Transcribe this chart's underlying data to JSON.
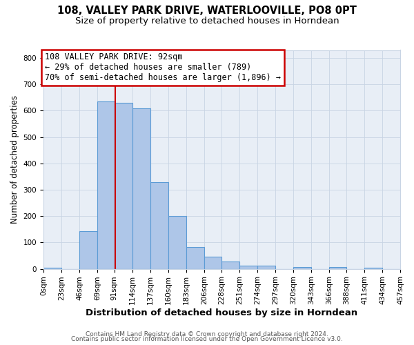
{
  "title": "108, VALLEY PARK DRIVE, WATERLOOVILLE, PO8 0PT",
  "subtitle": "Size of property relative to detached houses in Horndean",
  "xlabel": "Distribution of detached houses by size in Horndean",
  "ylabel": "Number of detached properties",
  "bin_edges": [
    0,
    23,
    46,
    69,
    91,
    114,
    137,
    160,
    183,
    206,
    228,
    251,
    274,
    297,
    320,
    343,
    366,
    388,
    411,
    434,
    457
  ],
  "bar_heights": [
    5,
    0,
    143,
    635,
    630,
    608,
    330,
    200,
    83,
    46,
    27,
    11,
    11,
    0,
    7,
    0,
    7,
    0,
    5,
    0
  ],
  "bar_color": "#aec6e8",
  "bar_edgecolor": "#5b9bd5",
  "property_size": 92,
  "vline_color": "#cc0000",
  "annotation_line1": "108 VALLEY PARK DRIVE: 92sqm",
  "annotation_line2": "← 29% of detached houses are smaller (789)",
  "annotation_line3": "70% of semi-detached houses are larger (1,896) →",
  "annotation_box_edgecolor": "#cc0000",
  "annotation_box_facecolor": "#ffffff",
  "ylim": [
    0,
    830
  ],
  "yticks": [
    0,
    100,
    200,
    300,
    400,
    500,
    600,
    700,
    800
  ],
  "tick_labels": [
    "0sqm",
    "23sqm",
    "46sqm",
    "69sqm",
    "91sqm",
    "114sqm",
    "137sqm",
    "160sqm",
    "183sqm",
    "206sqm",
    "228sqm",
    "251sqm",
    "274sqm",
    "297sqm",
    "320sqm",
    "343sqm",
    "366sqm",
    "388sqm",
    "411sqm",
    "434sqm",
    "457sqm"
  ],
  "footer_line1": "Contains HM Land Registry data © Crown copyright and database right 2024.",
  "footer_line2": "Contains public sector information licensed under the Open Government Licence v3.0.",
  "bg_color": "#e8eef6",
  "grid_color": "#c8d4e4",
  "title_fontsize": 10.5,
  "subtitle_fontsize": 9.5,
  "ylabel_fontsize": 8.5,
  "xlabel_fontsize": 9.5,
  "annot_fontsize": 8.5,
  "tick_fontsize": 7.5,
  "footer_fontsize": 6.5
}
